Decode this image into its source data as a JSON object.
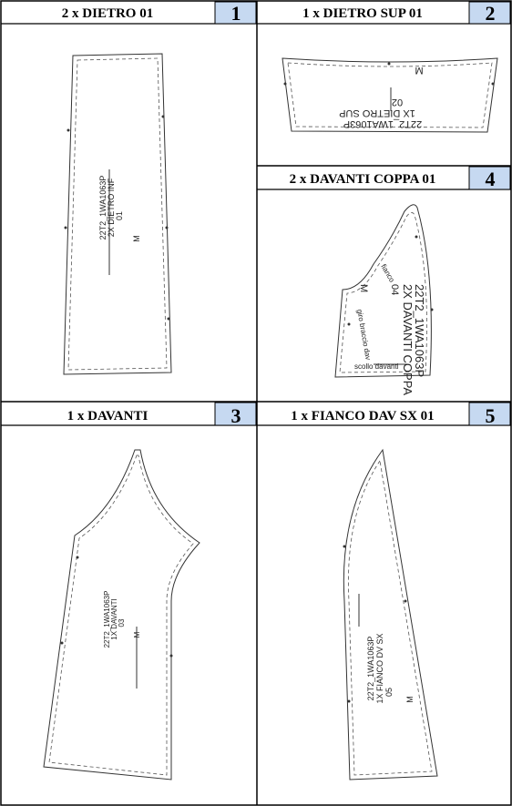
{
  "pieces": [
    {
      "title": "2 x DIETRO 01",
      "number": "1",
      "labels": {
        "code": "22T2_1WA1063P",
        "name": "2X DIETRO INF",
        "num": "01",
        "size": "M"
      }
    },
    {
      "title": "1 x DIETRO SUP 01",
      "number": "2",
      "labels": {
        "code": "22T2_1WA1063P",
        "name": "1X DIETRO SUP",
        "num": "02",
        "size": "M"
      }
    },
    {
      "title": "1 x DAVANTI",
      "number": "3",
      "labels": {
        "code": "22T2_1WA1063P",
        "name": "1X DAVANTI",
        "num": "03",
        "size": "M"
      }
    },
    {
      "title": "2 x DAVANTI COPPA 01",
      "number": "4",
      "labels": {
        "code": "22T2_1WA1063P",
        "name": "2X DAVANTI COPPA",
        "num": "04",
        "size": "M",
        "fianco": "fianco",
        "giro": "giro braccio dav",
        "scollo": "scollo davanti"
      }
    },
    {
      "title": "1 x FIANCO DAV SX 01",
      "number": "5",
      "labels": {
        "code": "22T2_1WA1063P",
        "name": "1X FIANCO DV SX",
        "num": "05",
        "size": "M"
      }
    }
  ],
  "colors": {
    "number_bg": "#c6d9f1",
    "border": "#000000",
    "line": "#333333"
  }
}
